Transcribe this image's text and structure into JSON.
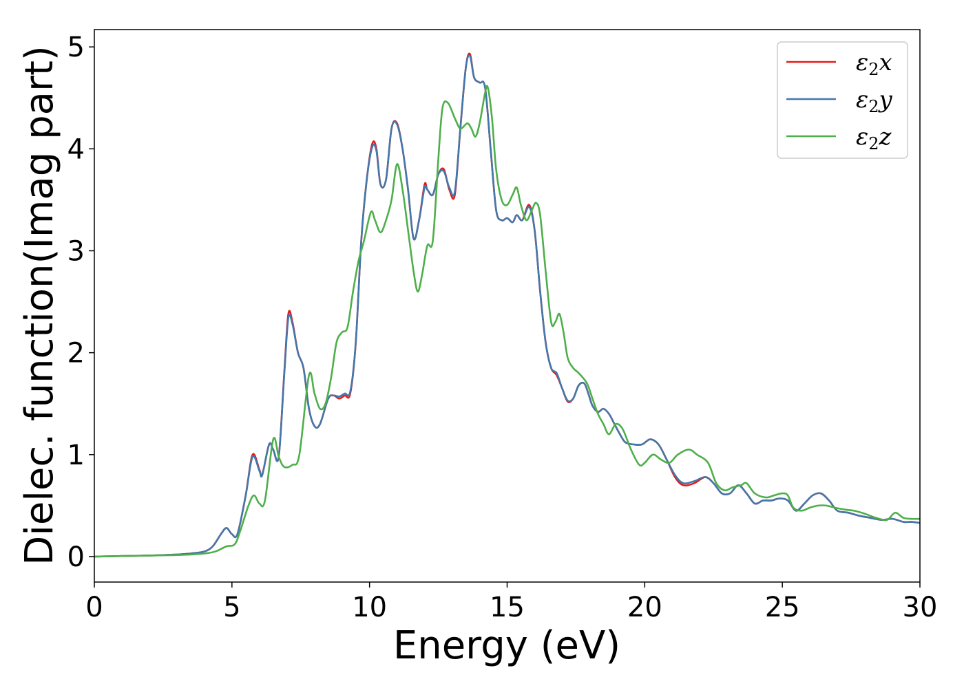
{
  "chart_data": {
    "type": "line",
    "title": "",
    "xlabel": "Energy (eV)",
    "ylabel": "Dielec. function(Imag part)",
    "xlim": [
      0,
      30
    ],
    "ylim": [
      -0.25,
      5.17
    ],
    "x_ticks": [
      "0",
      "5",
      "10",
      "15",
      "20",
      "25",
      "30"
    ],
    "y_ticks": [
      "0",
      "1",
      "2",
      "3",
      "4",
      "5"
    ],
    "grid": false,
    "legend_position": "top-right",
    "series": [
      {
        "name": "ε₂x",
        "legend": {
          "base": "ε",
          "sub": "2",
          "axis": "x"
        },
        "color": "#e41a1c",
        "x": [
          0,
          1,
          2,
          3,
          3.5,
          4,
          4.3,
          4.6,
          4.8,
          5.0,
          5.2,
          5.5,
          5.75,
          6.0,
          6.1,
          6.35,
          6.5,
          6.7,
          6.9,
          7.05,
          7.2,
          7.4,
          7.6,
          7.8,
          8.0,
          8.2,
          8.5,
          8.7,
          8.9,
          9.1,
          9.3,
          9.5,
          9.7,
          9.9,
          10.1,
          10.25,
          10.4,
          10.6,
          10.8,
          11.0,
          11.2,
          11.4,
          11.6,
          11.8,
          12.0,
          12.1,
          12.3,
          12.5,
          12.7,
          12.9,
          13.1,
          13.3,
          13.5,
          13.65,
          13.8,
          14.0,
          14.2,
          14.4,
          14.6,
          14.8,
          15.0,
          15.2,
          15.35,
          15.55,
          15.8,
          16.0,
          16.2,
          16.4,
          16.6,
          16.8,
          17.0,
          17.2,
          17.4,
          17.6,
          17.8,
          17.95,
          18.1,
          18.3,
          18.5,
          18.7,
          18.9,
          19.1,
          19.3,
          19.6,
          19.9,
          20.2,
          20.5,
          20.8,
          21.1,
          21.4,
          21.8,
          22.2,
          22.5,
          22.8,
          23.1,
          23.4,
          23.7,
          24.0,
          24.3,
          24.6,
          24.9,
          25.2,
          25.5,
          25.8,
          26.1,
          26.4,
          26.7,
          27.0,
          27.4,
          27.8,
          28.2,
          28.6,
          29.0,
          29.4,
          29.7,
          30
        ],
        "y": [
          0.0,
          0.005,
          0.01,
          0.02,
          0.03,
          0.05,
          0.1,
          0.22,
          0.28,
          0.22,
          0.22,
          0.6,
          1.0,
          0.85,
          0.8,
          1.1,
          1.05,
          0.98,
          1.8,
          2.38,
          2.3,
          2.0,
          1.85,
          1.45,
          1.28,
          1.3,
          1.55,
          1.58,
          1.55,
          1.58,
          1.6,
          2.1,
          3.1,
          3.7,
          4.05,
          4.0,
          3.65,
          3.7,
          4.2,
          4.25,
          4.0,
          3.6,
          3.12,
          3.3,
          3.65,
          3.6,
          3.55,
          3.75,
          3.8,
          3.6,
          3.55,
          4.2,
          4.8,
          4.93,
          4.7,
          4.65,
          4.6,
          4.0,
          3.4,
          3.3,
          3.32,
          3.28,
          3.35,
          3.3,
          3.45,
          3.2,
          2.6,
          2.1,
          1.85,
          1.78,
          1.65,
          1.52,
          1.55,
          1.68,
          1.7,
          1.6,
          1.48,
          1.42,
          1.45,
          1.4,
          1.3,
          1.2,
          1.12,
          1.1,
          1.1,
          1.15,
          1.1,
          0.95,
          0.78,
          0.7,
          0.72,
          0.78,
          0.72,
          0.62,
          0.62,
          0.7,
          0.62,
          0.52,
          0.55,
          0.55,
          0.57,
          0.55,
          0.45,
          0.52,
          0.6,
          0.62,
          0.55,
          0.45,
          0.43,
          0.4,
          0.38,
          0.36,
          0.37,
          0.34,
          0.34,
          0.33
        ]
      },
      {
        "name": "ε₂y",
        "legend": {
          "base": "ε",
          "sub": "2",
          "axis": "y"
        },
        "color": "#4477aa",
        "x": [
          0,
          1,
          2,
          3,
          3.5,
          4,
          4.3,
          4.6,
          4.8,
          5.0,
          5.2,
          5.5,
          5.75,
          6.0,
          6.1,
          6.35,
          6.5,
          6.7,
          6.9,
          7.05,
          7.2,
          7.4,
          7.6,
          7.8,
          8.0,
          8.2,
          8.5,
          8.7,
          8.9,
          9.1,
          9.3,
          9.5,
          9.7,
          9.9,
          10.1,
          10.25,
          10.4,
          10.6,
          10.8,
          11.0,
          11.2,
          11.4,
          11.6,
          11.8,
          12.0,
          12.1,
          12.3,
          12.5,
          12.7,
          12.9,
          13.1,
          13.3,
          13.5,
          13.65,
          13.8,
          14.0,
          14.2,
          14.4,
          14.6,
          14.8,
          15.0,
          15.2,
          15.35,
          15.55,
          15.8,
          16.0,
          16.2,
          16.4,
          16.6,
          16.8,
          17.0,
          17.2,
          17.4,
          17.6,
          17.8,
          17.95,
          18.1,
          18.3,
          18.5,
          18.7,
          18.9,
          19.1,
          19.3,
          19.6,
          19.9,
          20.2,
          20.5,
          20.8,
          21.1,
          21.4,
          21.8,
          22.2,
          22.5,
          22.8,
          23.1,
          23.4,
          23.7,
          24.0,
          24.3,
          24.6,
          24.9,
          25.2,
          25.5,
          25.8,
          26.1,
          26.4,
          26.7,
          27.0,
          27.4,
          27.8,
          28.2,
          28.6,
          29.0,
          29.4,
          29.7,
          30
        ],
        "y": [
          0.0,
          0.005,
          0.01,
          0.02,
          0.03,
          0.05,
          0.1,
          0.22,
          0.28,
          0.22,
          0.22,
          0.6,
          0.98,
          0.84,
          0.8,
          1.1,
          1.05,
          0.98,
          1.78,
          2.34,
          2.28,
          2.0,
          1.85,
          1.45,
          1.28,
          1.3,
          1.55,
          1.58,
          1.57,
          1.6,
          1.62,
          2.1,
          3.1,
          3.7,
          4.02,
          3.98,
          3.65,
          3.7,
          4.2,
          4.24,
          4.0,
          3.6,
          3.12,
          3.3,
          3.62,
          3.6,
          3.55,
          3.75,
          3.78,
          3.62,
          3.58,
          4.2,
          4.8,
          4.91,
          4.7,
          4.65,
          4.6,
          4.0,
          3.4,
          3.3,
          3.32,
          3.28,
          3.35,
          3.3,
          3.43,
          3.2,
          2.6,
          2.1,
          1.85,
          1.8,
          1.65,
          1.53,
          1.55,
          1.68,
          1.7,
          1.6,
          1.48,
          1.42,
          1.45,
          1.4,
          1.3,
          1.2,
          1.12,
          1.1,
          1.1,
          1.15,
          1.1,
          0.95,
          0.8,
          0.72,
          0.74,
          0.78,
          0.72,
          0.62,
          0.62,
          0.7,
          0.62,
          0.52,
          0.55,
          0.55,
          0.57,
          0.55,
          0.45,
          0.52,
          0.6,
          0.62,
          0.55,
          0.45,
          0.43,
          0.4,
          0.38,
          0.36,
          0.37,
          0.34,
          0.34,
          0.33
        ]
      },
      {
        "name": "ε₂z",
        "legend": {
          "base": "ε",
          "sub": "2",
          "axis": "z"
        },
        "color": "#4daf4a",
        "x": [
          0,
          1,
          2,
          3,
          3.5,
          4,
          4.4,
          4.8,
          5.1,
          5.3,
          5.6,
          5.8,
          6.0,
          6.2,
          6.5,
          6.7,
          6.9,
          7.2,
          7.45,
          7.8,
          8.0,
          8.2,
          8.4,
          8.6,
          8.8,
          9.0,
          9.2,
          9.4,
          9.6,
          9.8,
          10.05,
          10.2,
          10.4,
          10.6,
          10.8,
          11.0,
          11.2,
          11.4,
          11.6,
          11.75,
          11.9,
          12.1,
          12.3,
          12.5,
          12.65,
          12.85,
          13.1,
          13.3,
          13.55,
          13.7,
          13.85,
          14.0,
          14.2,
          14.3,
          14.45,
          14.6,
          14.8,
          15.0,
          15.2,
          15.35,
          15.5,
          15.7,
          15.9,
          16.05,
          16.2,
          16.4,
          16.6,
          16.75,
          16.9,
          17.05,
          17.2,
          17.4,
          17.6,
          17.9,
          18.1,
          18.3,
          18.5,
          18.7,
          18.95,
          19.2,
          19.5,
          19.8,
          20.0,
          20.3,
          20.6,
          20.9,
          21.2,
          21.6,
          21.9,
          22.3,
          22.6,
          22.9,
          23.2,
          23.5,
          23.7,
          24.0,
          24.4,
          24.7,
          25.0,
          25.2,
          25.4,
          25.7,
          26.0,
          26.3,
          26.6,
          26.9,
          27.3,
          27.6,
          28.0,
          28.4,
          28.8,
          29.1,
          29.4,
          29.7,
          30
        ],
        "y": [
          0.0,
          0.005,
          0.01,
          0.015,
          0.02,
          0.03,
          0.05,
          0.1,
          0.12,
          0.25,
          0.5,
          0.6,
          0.52,
          0.55,
          1.15,
          0.98,
          0.88,
          0.9,
          1.0,
          1.78,
          1.6,
          1.45,
          1.5,
          1.75,
          2.1,
          2.2,
          2.25,
          2.6,
          2.9,
          3.1,
          3.38,
          3.3,
          3.18,
          3.3,
          3.5,
          3.85,
          3.6,
          3.2,
          2.8,
          2.6,
          2.75,
          3.05,
          3.1,
          3.9,
          4.4,
          4.45,
          4.3,
          4.2,
          4.25,
          4.2,
          4.12,
          4.25,
          4.55,
          4.6,
          4.3,
          3.8,
          3.5,
          3.45,
          3.55,
          3.62,
          3.45,
          3.3,
          3.4,
          3.47,
          3.35,
          2.8,
          2.3,
          2.3,
          2.38,
          2.2,
          1.95,
          1.85,
          1.8,
          1.7,
          1.55,
          1.4,
          1.3,
          1.2,
          1.3,
          1.25,
          1.05,
          0.9,
          0.92,
          1.0,
          0.95,
          0.92,
          1.0,
          1.05,
          1.0,
          0.92,
          0.72,
          0.65,
          0.68,
          0.7,
          0.72,
          0.62,
          0.58,
          0.6,
          0.62,
          0.6,
          0.48,
          0.45,
          0.48,
          0.5,
          0.5,
          0.48,
          0.46,
          0.45,
          0.42,
          0.38,
          0.36,
          0.43,
          0.38,
          0.37,
          0.37
        ]
      }
    ]
  }
}
